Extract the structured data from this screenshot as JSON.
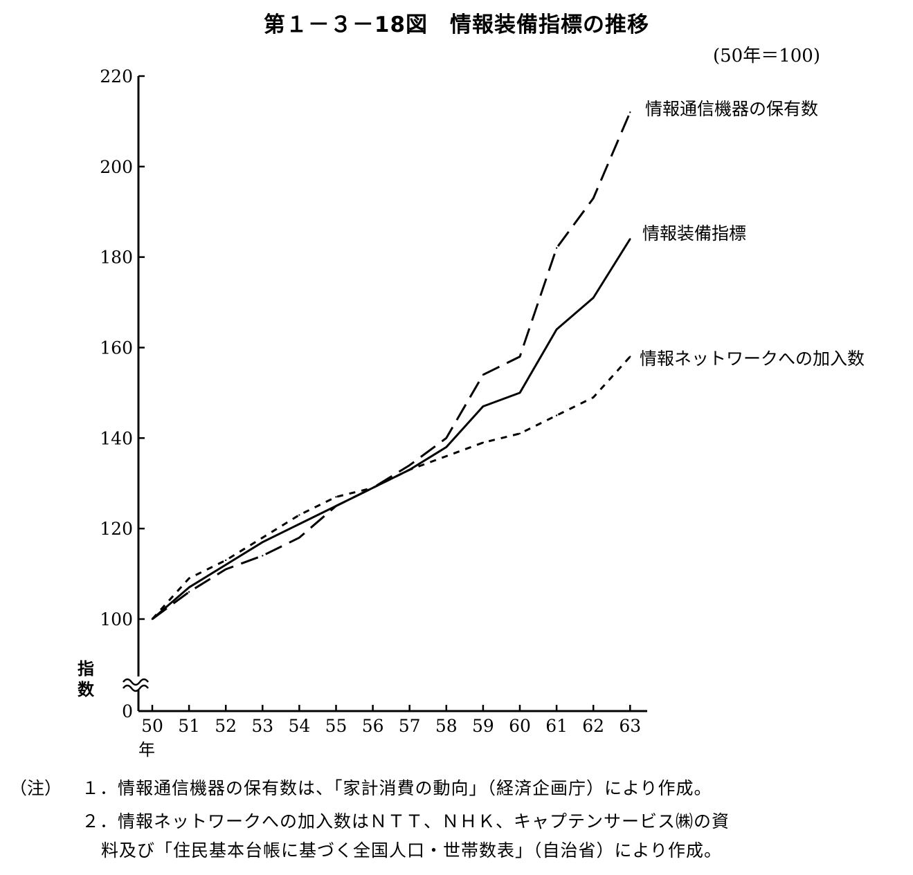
{
  "title": "第１－３－18図　情報装備指標の推移",
  "unit_label": "(50年＝100)",
  "chart_data": {
    "type": "line",
    "x": [
      50,
      51,
      52,
      53,
      54,
      55,
      56,
      57,
      58,
      59,
      60,
      61,
      62,
      63
    ],
    "x_tick_labels": [
      "50",
      "51",
      "52",
      "53",
      "54",
      "55",
      "56",
      "57",
      "58",
      "59",
      "60",
      "61",
      "62",
      "63"
    ],
    "x_unit": "年",
    "y_ticks": [
      0,
      100,
      120,
      140,
      160,
      180,
      200,
      220
    ],
    "y_tick_labels": [
      "0",
      "100",
      "120",
      "140",
      "160",
      "180",
      "200",
      "220"
    ],
    "ylabel": "指数",
    "ylim": [
      100,
      220
    ],
    "y_axis_break": true,
    "series": [
      {
        "name": "情報通信機器の保有数",
        "style": "long-dash",
        "values": [
          100,
          106,
          111,
          114,
          118,
          125,
          129,
          134,
          140,
          154,
          158,
          182,
          193,
          212
        ]
      },
      {
        "name": "情報装備指標",
        "style": "solid",
        "values": [
          100,
          107,
          112,
          117,
          121,
          125,
          129,
          133,
          138,
          147,
          150,
          164,
          171,
          184
        ]
      },
      {
        "name": "情報ネットワークへの加入数",
        "style": "short-dash",
        "values": [
          100,
          109,
          113,
          118,
          123,
          127,
          129,
          133,
          136,
          139,
          141,
          145,
          149,
          158
        ]
      }
    ]
  },
  "notes": {
    "head": "（注）",
    "line1": "１．情報通信機器の保有数は、「家計消費の動向」（経済企画庁）により作成。",
    "line2": "２．情報ネットワークへの加入数はＮＴＴ、ＮＨＫ、キャプテンサービス㈱の資",
    "line3": "料及び「住民基本台帳に基づく全国人口・世帯数表」（自治省）により作成。"
  }
}
